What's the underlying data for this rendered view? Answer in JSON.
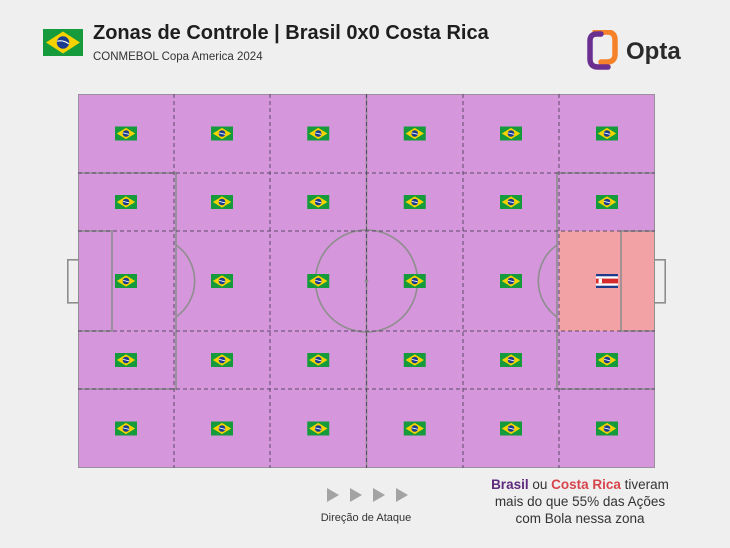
{
  "header": {
    "title": "Zonas de Controle | Brasil 0x0 Costa Rica",
    "subtitle": "CONMEBOL Copa America 2024",
    "brand": "Opta",
    "team_flag": "brazil-flag"
  },
  "colors": {
    "background": "#efefef",
    "brasil_zone": "#d596dc",
    "costa_rica_zone": "#f2a1a4",
    "pitch_lines": "#8e8e8e",
    "zone_divider": "#5a4a66",
    "brasil_text": "#5e2a7c",
    "costa_rica_text": "#d6454b",
    "opta_accent": "#f5822a"
  },
  "zones": [
    [
      "brasil",
      "brasil",
      "brasil",
      "brasil",
      "brasil",
      "brasil"
    ],
    [
      "brasil",
      "brasil",
      "brasil",
      "brasil",
      "brasil",
      "brasil"
    ],
    [
      "brasil",
      "brasil",
      "brasil",
      "brasil",
      "brasil",
      "costa_rica"
    ],
    [
      "brasil",
      "brasil",
      "brasil",
      "brasil",
      "brasil",
      "brasil"
    ],
    [
      "brasil",
      "brasil",
      "brasil",
      "brasil",
      "brasil",
      "brasil"
    ]
  ],
  "legend": {
    "direction_label": "Direção de Ataque",
    "arrow_icons": "play-arrow-icon"
  },
  "note": {
    "team1": "Brasil",
    "connector": " ou ",
    "team2": "Costa Rica",
    "line1_rest": " tiveram",
    "line2": "mais do que 55% das Ações",
    "line3": "com Bola nessa zona"
  }
}
